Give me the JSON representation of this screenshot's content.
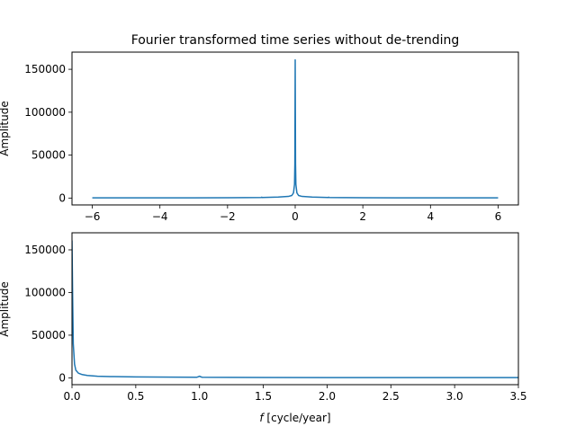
{
  "chart_data": [
    {
      "type": "line",
      "title": "Fourier transformed time series without de-trending",
      "xlabel": "",
      "ylabel": "Amplitude",
      "xlim": [
        -6.6,
        6.6
      ],
      "ylim": [
        -8000,
        170000
      ],
      "xticks": [
        -6,
        -4,
        -2,
        0,
        2,
        4,
        6
      ],
      "xtick_labels": [
        "−6",
        "−4",
        "−2",
        "0",
        "2",
        "4",
        "6"
      ],
      "yticks": [
        0,
        50000,
        100000,
        150000
      ],
      "ytick_labels": [
        "0",
        "50000",
        "100000",
        "150000"
      ],
      "color": "#1f77b4",
      "series": [
        {
          "x": [
            -6.0,
            -5.0,
            -4.0,
            -3.0,
            -2.0,
            -1.5,
            -1.0,
            -0.99,
            -0.98,
            -0.5,
            -0.2,
            -0.1,
            -0.05,
            -0.02,
            -0.01,
            0.0,
            0.01,
            0.02,
            0.05,
            0.1,
            0.2,
            0.5,
            0.98,
            0.99,
            1.0,
            1.5,
            2.0,
            3.0,
            4.0,
            5.0,
            6.0
          ],
          "y": [
            200,
            210,
            230,
            260,
            350,
            450,
            700,
            1000,
            700,
            1100,
            1900,
            3000,
            6000,
            16000,
            40000,
            161000,
            40000,
            16000,
            6000,
            3000,
            1900,
            1100,
            700,
            1000,
            700,
            450,
            350,
            260,
            230,
            210,
            200
          ]
        }
      ]
    },
    {
      "type": "line",
      "title": "",
      "xlabel": "f [cycle/year]",
      "xlabel_italic_part": "f",
      "xlabel_rest": " [cycle/year]",
      "ylabel": "Amplitude",
      "xlim": [
        0,
        3.5
      ],
      "ylim": [
        -8000,
        170000
      ],
      "xticks": [
        0,
        0.5,
        1.0,
        1.5,
        2.0,
        2.5,
        3.0,
        3.5
      ],
      "xtick_labels": [
        "0.0",
        "0.5",
        "1.0",
        "1.5",
        "2.0",
        "2.5",
        "3.0",
        "3.5"
      ],
      "yticks": [
        0,
        50000,
        100000,
        150000
      ],
      "ytick_labels": [
        "0",
        "50000",
        "100000",
        "150000"
      ],
      "color": "#1f77b4",
      "series": [
        {
          "x": [
            0.0,
            0.005,
            0.01,
            0.02,
            0.03,
            0.05,
            0.08,
            0.12,
            0.2,
            0.3,
            0.5,
            0.8,
            0.98,
            0.99,
            1.0,
            1.01,
            1.02,
            1.5,
            2.0,
            2.5,
            3.0,
            3.5
          ],
          "y": [
            161000,
            95000,
            40000,
            16000,
            9000,
            5500,
            3800,
            2800,
            1900,
            1500,
            1100,
            800,
            700,
            1300,
            1900,
            1200,
            700,
            450,
            350,
            300,
            260,
            240
          ]
        }
      ]
    }
  ]
}
